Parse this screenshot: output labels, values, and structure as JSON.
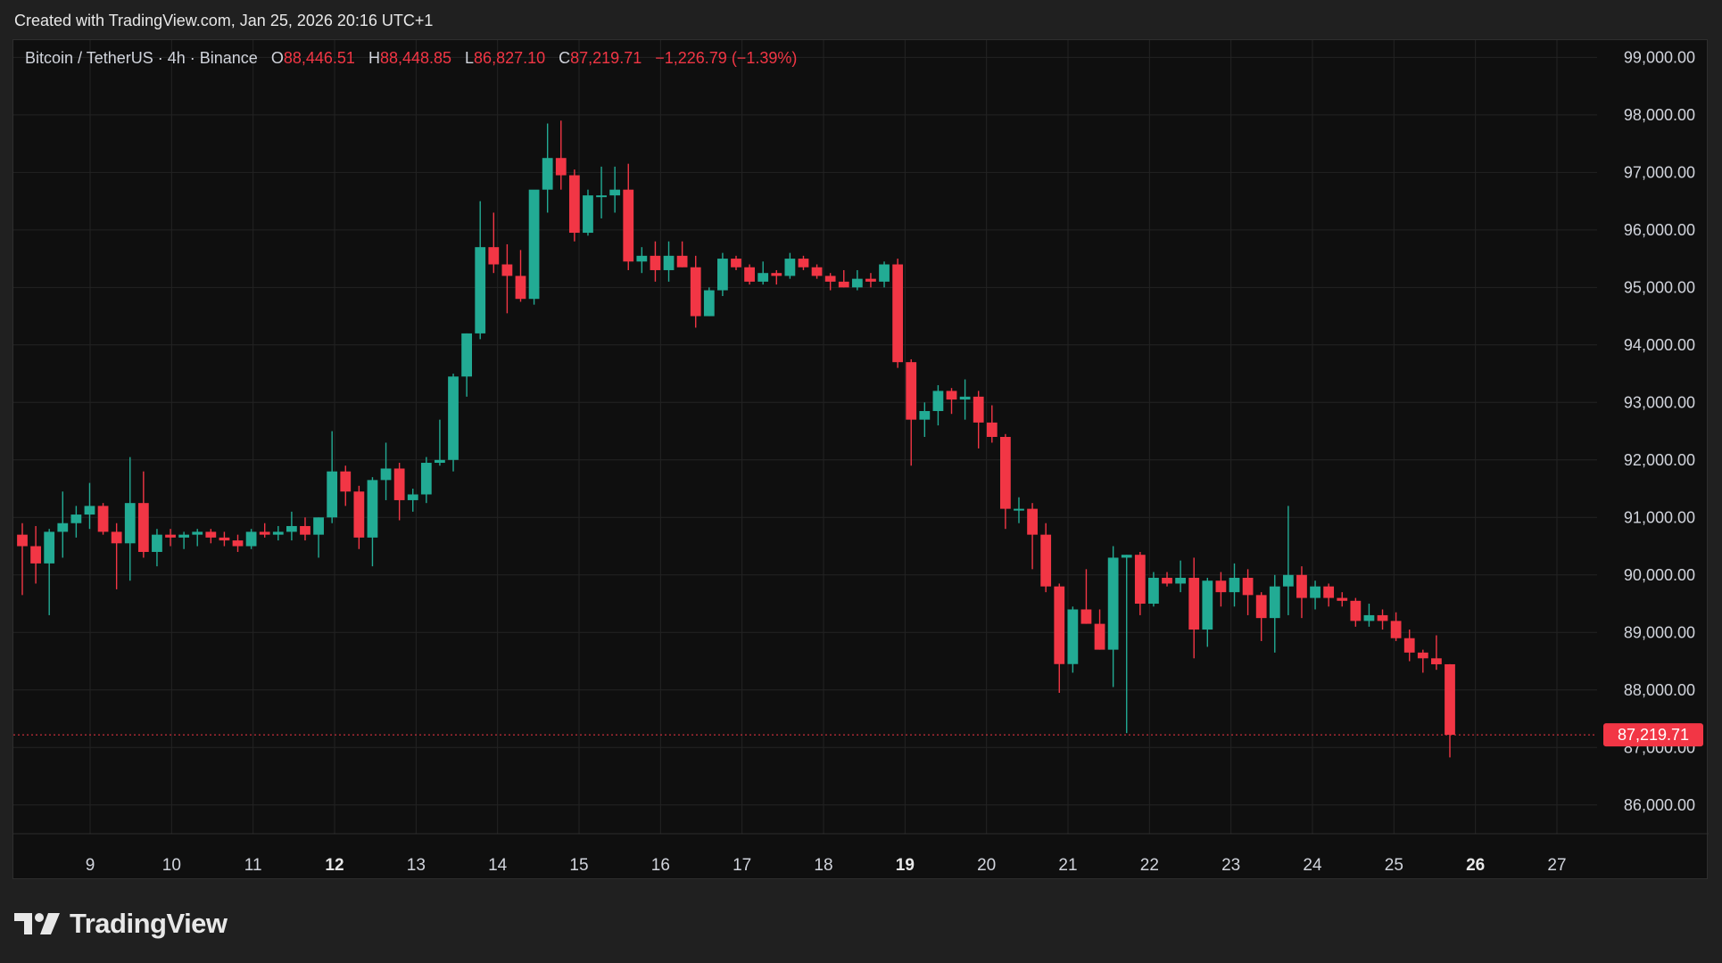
{
  "header": {
    "caption": "Created with TradingView.com, Jan 25, 2026 20:16 UTC+1"
  },
  "legend": {
    "symbol": "Bitcoin / TetherUS · 4h · Binance",
    "o_label": "O",
    "o_value": "88,446.51",
    "h_label": "H",
    "h_value": "88,448.85",
    "l_label": "L",
    "l_value": "86,827.10",
    "c_label": "C",
    "c_value": "87,219.71",
    "change": "−1,226.79 (−1.39%)"
  },
  "brand": {
    "name": "TradingView"
  },
  "colors": {
    "up": "#22ab94",
    "down": "#f23645",
    "grid": "#232323",
    "axis_text": "#d1d4dc",
    "background": "#0f0f0f"
  },
  "chart_data": {
    "type": "candlestick",
    "symbol": "BTCUSDT",
    "interval": "4h",
    "ylim": [
      85500,
      99300
    ],
    "y_ticks": [
      {
        "value": 99000,
        "label": "99,000.00"
      },
      {
        "value": 98000,
        "label": "98,000.00"
      },
      {
        "value": 97000,
        "label": "97,000.00"
      },
      {
        "value": 96000,
        "label": "96,000.00"
      },
      {
        "value": 95000,
        "label": "95,000.00"
      },
      {
        "value": 94000,
        "label": "94,000.00"
      },
      {
        "value": 93000,
        "label": "93,000.00"
      },
      {
        "value": 92000,
        "label": "92,000.00"
      },
      {
        "value": 91000,
        "label": "91,000.00"
      },
      {
        "value": 90000,
        "label": "90,000.00"
      },
      {
        "value": 89000,
        "label": "89,000.00"
      },
      {
        "value": 88000,
        "label": "88,000.00"
      },
      {
        "value": 87000,
        "label": "87,000.00"
      },
      {
        "value": 86000,
        "label": "86,000.00"
      }
    ],
    "x_ticks": [
      {
        "day": 9,
        "label": "9",
        "bold": false
      },
      {
        "day": 10,
        "label": "10",
        "bold": false
      },
      {
        "day": 11,
        "label": "11",
        "bold": false
      },
      {
        "day": 12,
        "label": "12",
        "bold": true
      },
      {
        "day": 13,
        "label": "13",
        "bold": false
      },
      {
        "day": 14,
        "label": "14",
        "bold": false
      },
      {
        "day": 15,
        "label": "15",
        "bold": false
      },
      {
        "day": 16,
        "label": "16",
        "bold": false
      },
      {
        "day": 17,
        "label": "17",
        "bold": false
      },
      {
        "day": 18,
        "label": "18",
        "bold": false
      },
      {
        "day": 19,
        "label": "19",
        "bold": true
      },
      {
        "day": 20,
        "label": "20",
        "bold": false
      },
      {
        "day": 21,
        "label": "21",
        "bold": false
      },
      {
        "day": 22,
        "label": "22",
        "bold": false
      },
      {
        "day": 23,
        "label": "23",
        "bold": false
      },
      {
        "day": 24,
        "label": "24",
        "bold": false
      },
      {
        "day": 25,
        "label": "25",
        "bold": false
      },
      {
        "day": 26,
        "label": "26",
        "bold": true
      },
      {
        "day": 27,
        "label": "27",
        "bold": false
      }
    ],
    "last_price": {
      "value": 87219.71,
      "label": "87,219.71"
    },
    "candles_ohlc": [
      [
        90700,
        90900,
        89650,
        90500
      ],
      [
        90500,
        90850,
        89850,
        90200
      ],
      [
        90200,
        90800,
        89300,
        90750
      ],
      [
        90750,
        91450,
        90300,
        90900
      ],
      [
        90900,
        91200,
        90650,
        91050
      ],
      [
        91050,
        91600,
        90800,
        91200
      ],
      [
        91200,
        91250,
        90700,
        90750
      ],
      [
        90750,
        90900,
        89750,
        90550
      ],
      [
        90550,
        92050,
        89900,
        91250
      ],
      [
        91250,
        91800,
        90300,
        90400
      ],
      [
        90400,
        90800,
        90150,
        90700
      ],
      [
        90700,
        90800,
        90500,
        90650
      ],
      [
        90650,
        90750,
        90450,
        90700
      ],
      [
        90700,
        90800,
        90500,
        90750
      ],
      [
        90750,
        90800,
        90550,
        90650
      ],
      [
        90650,
        90750,
        90500,
        90600
      ],
      [
        90600,
        90700,
        90400,
        90500
      ],
      [
        90500,
        90800,
        90450,
        90750
      ],
      [
        90750,
        90900,
        90650,
        90700
      ],
      [
        90700,
        90850,
        90600,
        90750
      ],
      [
        90750,
        91100,
        90600,
        90850
      ],
      [
        90850,
        91000,
        90600,
        90700
      ],
      [
        90700,
        91000,
        90300,
        91000
      ],
      [
        91000,
        92500,
        90900,
        91800
      ],
      [
        91800,
        91900,
        91200,
        91450
      ],
      [
        91450,
        91550,
        90450,
        90650
      ],
      [
        90650,
        91700,
        90150,
        91650
      ],
      [
        91650,
        92300,
        91300,
        91850
      ],
      [
        91850,
        91950,
        90950,
        91300
      ],
      [
        91300,
        91500,
        91100,
        91400
      ],
      [
        91400,
        92050,
        91250,
        91950
      ],
      [
        91950,
        92700,
        91900,
        92000
      ],
      [
        92000,
        93500,
        91800,
        93450
      ],
      [
        93450,
        94200,
        93100,
        94200
      ],
      [
        94200,
        96500,
        94100,
        95700
      ],
      [
        95700,
        96300,
        95250,
        95400
      ],
      [
        95400,
        95750,
        94550,
        95200
      ],
      [
        95200,
        95650,
        94750,
        94800
      ],
      [
        94800,
        96500,
        94700,
        96700
      ],
      [
        96700,
        97850,
        96300,
        97250
      ],
      [
        97250,
        97900,
        96700,
        96950
      ],
      [
        96950,
        97050,
        95800,
        95950
      ],
      [
        95950,
        96700,
        95900,
        96600
      ],
      [
        96600,
        97100,
        96200,
        96600
      ],
      [
        96600,
        97100,
        96300,
        96700
      ],
      [
        96700,
        97150,
        95300,
        95450
      ],
      [
        95450,
        95700,
        95250,
        95550
      ],
      [
        95550,
        95800,
        95100,
        95300
      ],
      [
        95300,
        95800,
        95100,
        95550
      ],
      [
        95550,
        95800,
        95350,
        95350
      ],
      [
        95350,
        95550,
        94300,
        94500
      ],
      [
        94500,
        95000,
        94500,
        94950
      ],
      [
        94950,
        95600,
        94850,
        95500
      ],
      [
        95500,
        95550,
        95300,
        95350
      ],
      [
        95350,
        95400,
        95050,
        95100
      ],
      [
        95100,
        95450,
        95050,
        95250
      ],
      [
        95250,
        95300,
        95050,
        95200
      ],
      [
        95200,
        95600,
        95150,
        95500
      ],
      [
        95500,
        95550,
        95300,
        95350
      ],
      [
        95350,
        95400,
        95150,
        95200
      ],
      [
        95200,
        95250,
        94950,
        95100
      ],
      [
        95100,
        95300,
        95000,
        95000
      ],
      [
        95000,
        95300,
        94950,
        95150
      ],
      [
        95150,
        95250,
        95000,
        95100
      ],
      [
        95100,
        95450,
        95000,
        95400
      ],
      [
        95400,
        95500,
        93600,
        93700
      ],
      [
        93700,
        93750,
        91900,
        92700
      ],
      [
        92700,
        93000,
        92400,
        92850
      ],
      [
        92850,
        93300,
        92600,
        93200
      ],
      [
        93200,
        93250,
        92800,
        93050
      ],
      [
        93050,
        93400,
        92700,
        93100
      ],
      [
        93100,
        93200,
        92200,
        92650
      ],
      [
        92650,
        92950,
        92300,
        92400
      ],
      [
        92400,
        92450,
        90800,
        91150
      ],
      [
        91150,
        91350,
        90900,
        91150
      ],
      [
        91150,
        91250,
        90100,
        90700
      ],
      [
        90700,
        90900,
        89700,
        89800
      ],
      [
        89800,
        89850,
        87950,
        88450
      ],
      [
        88450,
        89450,
        88300,
        89400
      ],
      [
        89400,
        90100,
        89150,
        89150
      ],
      [
        89150,
        89400,
        88700,
        88700
      ],
      [
        88700,
        90500,
        88050,
        90300
      ],
      [
        90300,
        90350,
        87250,
        90350
      ],
      [
        90350,
        90400,
        89300,
        89500
      ],
      [
        89500,
        90050,
        89450,
        89950
      ],
      [
        89950,
        90050,
        89800,
        89850
      ],
      [
        89850,
        90250,
        89700,
        89950
      ],
      [
        89950,
        90300,
        88550,
        89050
      ],
      [
        89050,
        89950,
        88750,
        89900
      ],
      [
        89900,
        90050,
        89450,
        89700
      ],
      [
        89700,
        90200,
        89450,
        89950
      ],
      [
        89950,
        90100,
        89300,
        89650
      ],
      [
        89650,
        89700,
        88850,
        89250
      ],
      [
        89250,
        90000,
        88650,
        89800
      ],
      [
        89800,
        91200,
        89300,
        90000
      ],
      [
        90000,
        90150,
        89250,
        89600
      ],
      [
        89600,
        89900,
        89400,
        89800
      ],
      [
        89800,
        89850,
        89450,
        89600
      ],
      [
        89600,
        89700,
        89450,
        89550
      ],
      [
        89550,
        89600,
        89100,
        89200
      ],
      [
        89200,
        89500,
        89100,
        89300
      ],
      [
        89300,
        89400,
        89050,
        89200
      ],
      [
        89200,
        89350,
        88850,
        88900
      ],
      [
        88900,
        89050,
        88500,
        88650
      ],
      [
        88650,
        88700,
        88300,
        88550
      ],
      [
        88550,
        88950,
        88350,
        88446.51
      ],
      [
        88446.51,
        88448.85,
        86827.1,
        87219.71
      ]
    ]
  }
}
